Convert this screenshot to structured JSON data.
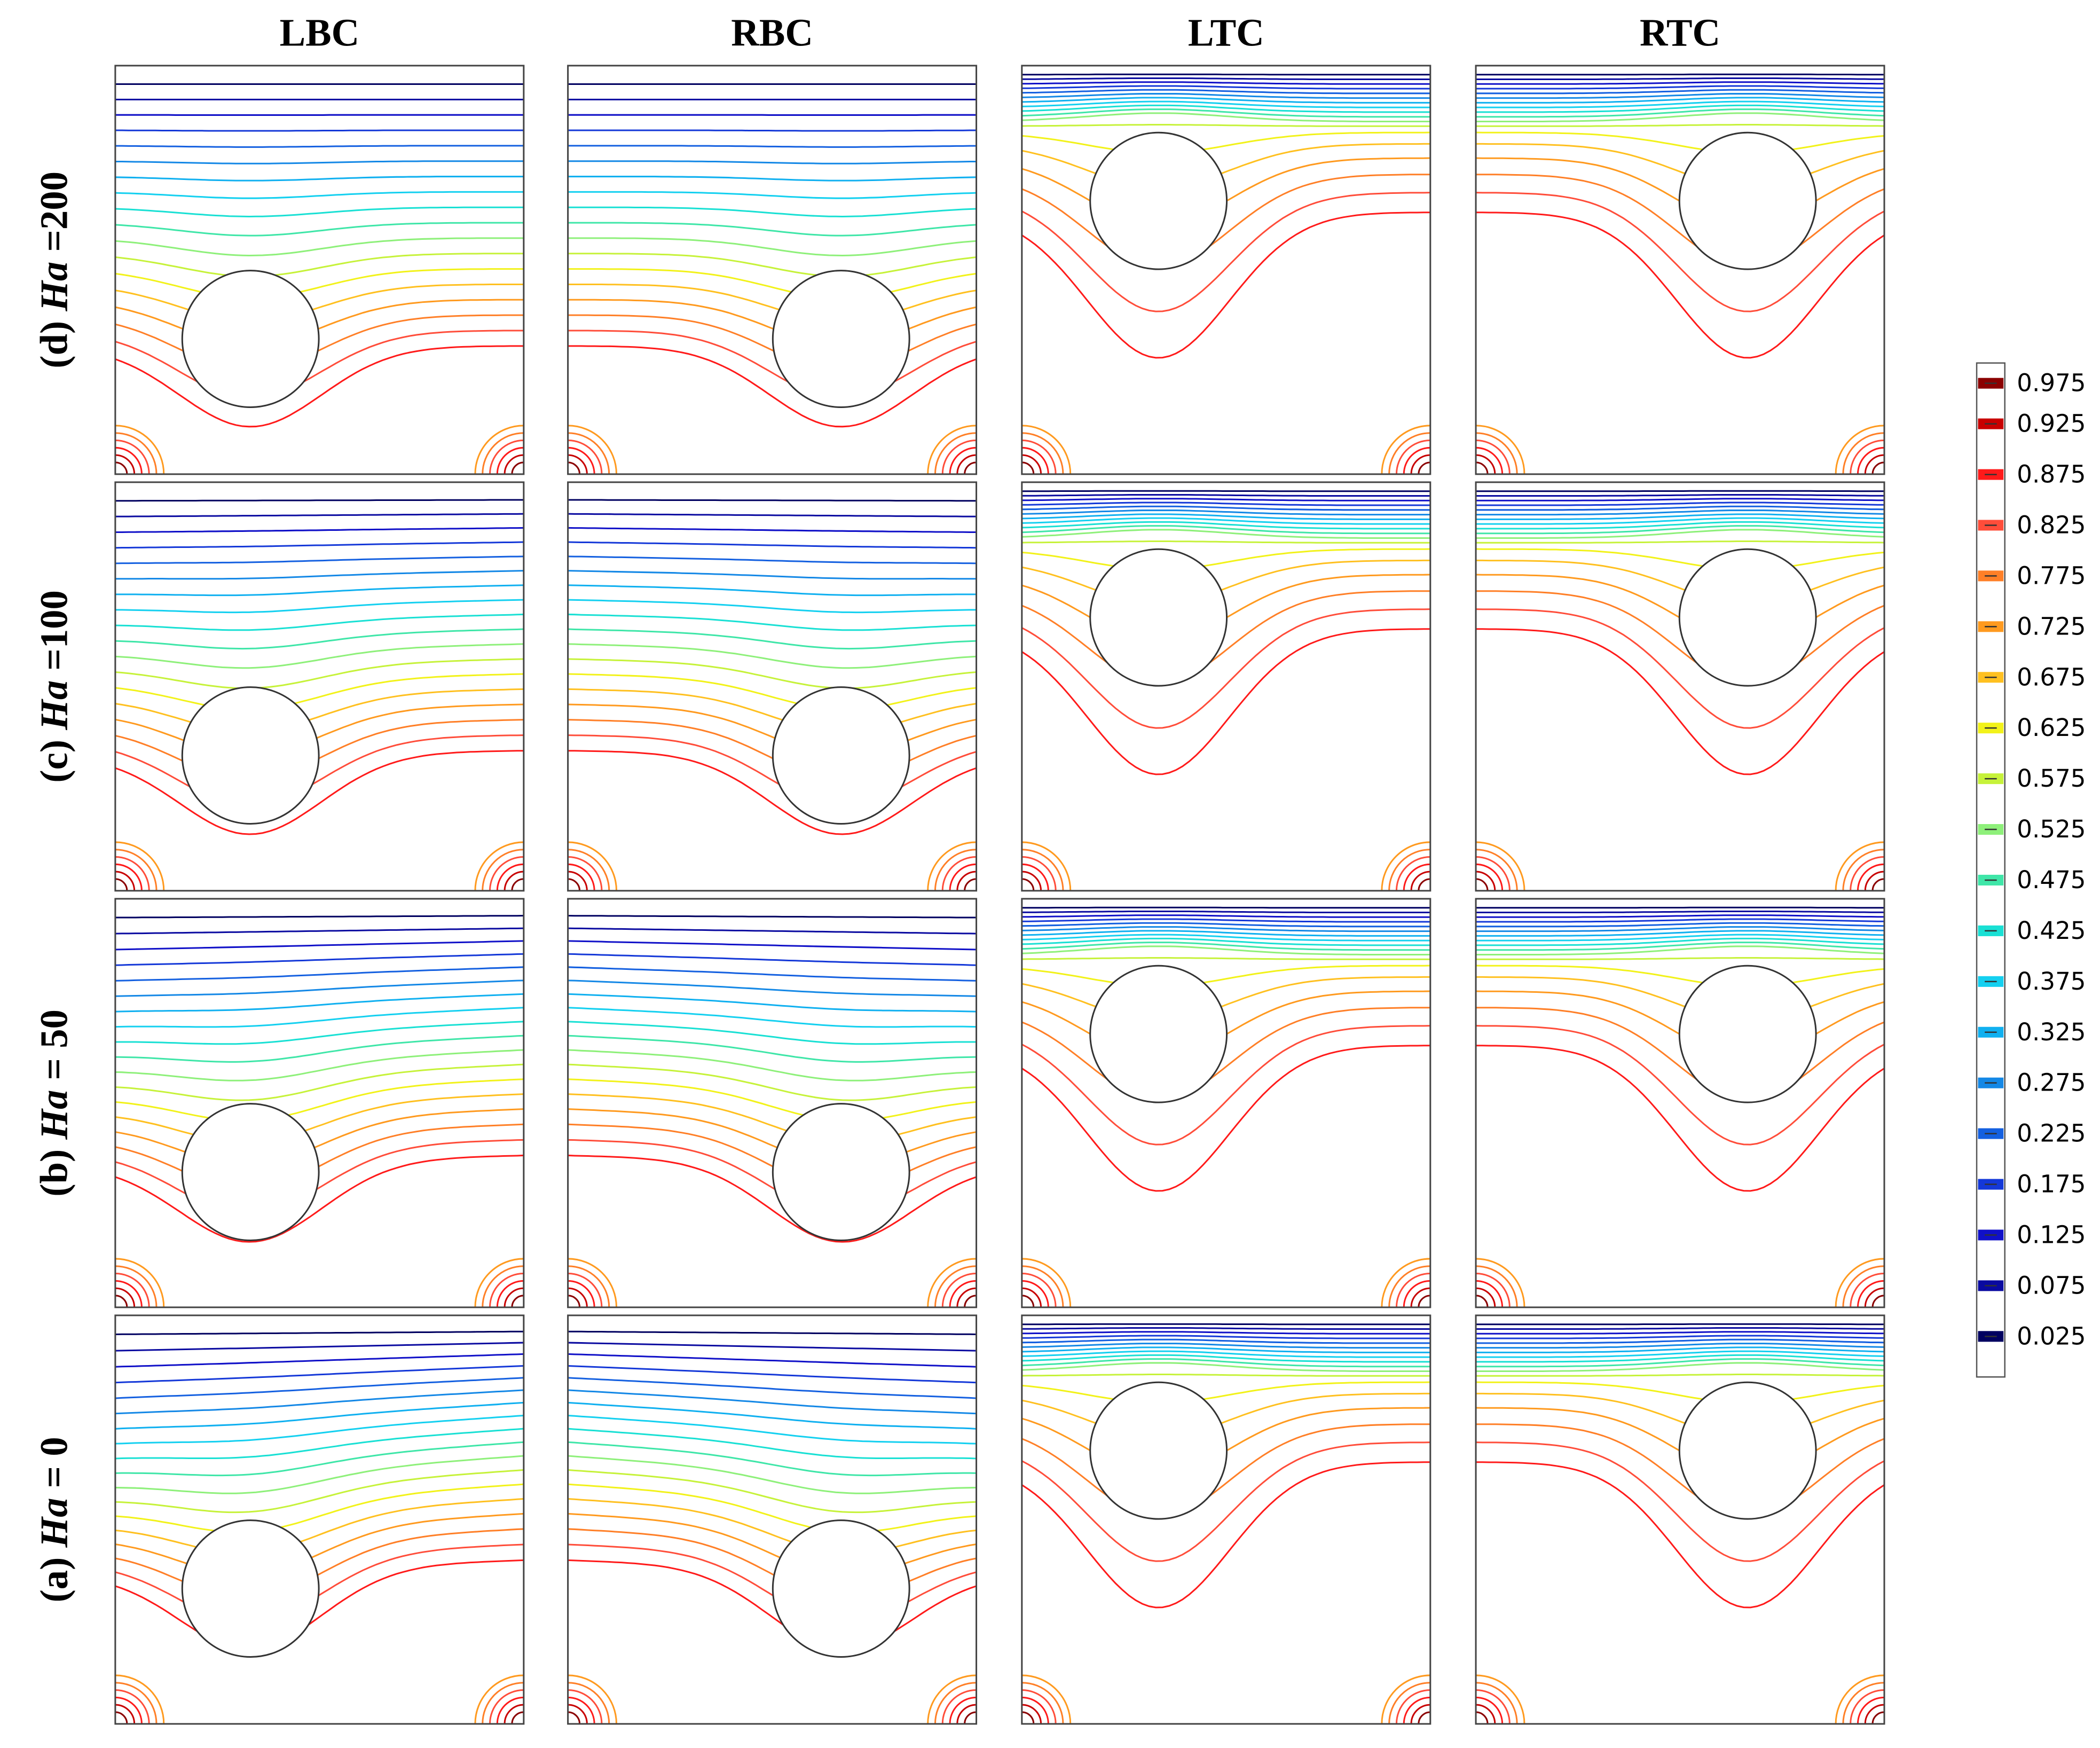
{
  "columns": [
    "LBC",
    "RBC",
    "LTC",
    "RTC"
  ],
  "rows": [
    {
      "prefix": "(d)",
      "variable": "Ha",
      "suffix": "=200"
    },
    {
      "prefix": "(c)",
      "variable": "Ha",
      "suffix": "=100"
    },
    {
      "prefix": "(b)",
      "variable": "Ha",
      "suffix": "= 50"
    },
    {
      "prefix": "(a)",
      "variable": "Ha",
      "suffix": "= 0"
    }
  ],
  "colorbar": {
    "ticks": [
      0.975,
      0.925,
      0.875,
      0.825,
      0.775,
      0.725,
      0.675,
      0.625,
      0.575,
      0.525,
      0.475,
      0.425,
      0.375,
      0.325,
      0.275,
      0.225,
      0.175,
      0.125,
      0.075,
      0.025
    ],
    "colors": [
      "#8b0000",
      "#c80000",
      "#ff1a1a",
      "#ff4d3a",
      "#ff7f27",
      "#ff9a1f",
      "#ffc020",
      "#f2f21a",
      "#c6f23a",
      "#8ef07a",
      "#3fe6a8",
      "#19e0d4",
      "#14d0f0",
      "#10b0f0",
      "#1488e6",
      "#1460e0",
      "#1438d8",
      "#1010c8",
      "#0a0aa0",
      "#000060"
    ]
  }
}
